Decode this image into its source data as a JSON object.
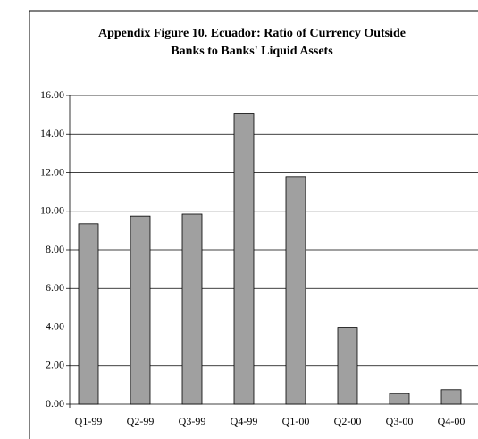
{
  "chart_data": {
    "type": "bar",
    "title": [
      "Appendix Figure 10. Ecuador: Ratio of Currency Outside",
      "Banks to Banks' Liquid Assets"
    ],
    "categories": [
      "Q1-99",
      "Q2-99",
      "Q3-99",
      "Q4-99",
      "Q1-00",
      "Q2-00",
      "Q3-00",
      "Q4-00"
    ],
    "values": [
      9.35,
      9.75,
      9.85,
      15.05,
      11.8,
      3.95,
      0.55,
      0.75
    ],
    "color": "#a0a0a0",
    "ylim": [
      0,
      16
    ],
    "yticks": [
      {
        "value": 0,
        "label": "0.00"
      },
      {
        "value": 2,
        "label": "2.00"
      },
      {
        "value": 4,
        "label": "4.00"
      },
      {
        "value": 6,
        "label": "6.00"
      },
      {
        "value": 8,
        "label": "8.00"
      },
      {
        "value": 10,
        "label": "10.00"
      },
      {
        "value": 12,
        "label": "12.00"
      },
      {
        "value": 14,
        "label": "14.00"
      },
      {
        "value": 16,
        "label": "16.00"
      }
    ],
    "grid": true
  }
}
